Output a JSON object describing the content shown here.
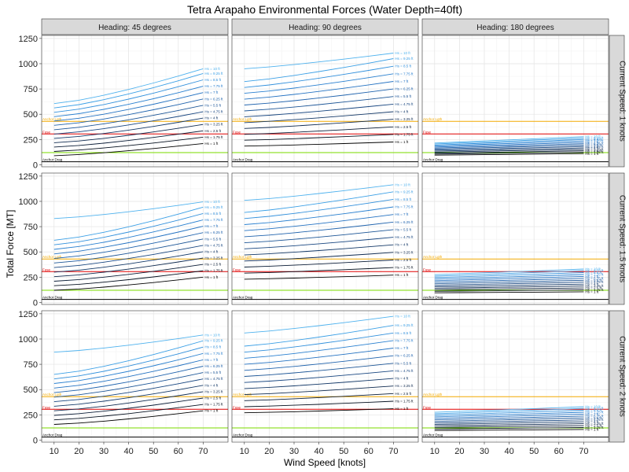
{
  "chart_data": {
    "type": "line",
    "title": "Tetra Arapaho Environmental Forces (Water Depth=40ft)",
    "xlabel": "Wind Speed [knots]",
    "ylabel": "Total Force [MT]",
    "x_ticks": [
      10,
      20,
      30,
      40,
      50,
      60,
      70
    ],
    "y_ticks": [
      0,
      250,
      500,
      750,
      1000,
      1250
    ],
    "xlim": [
      5,
      80
    ],
    "ylim": [
      -20,
      1280
    ],
    "grid": true,
    "col_strips": [
      "Heading:  45  degrees",
      "Heading:  90  degrees",
      "Heading:  180  degrees"
    ],
    "row_strips": [
      "Current Speed:  1  knots",
      "Current Speed:  1.5  knots",
      "Current Speed:  2  knots"
    ],
    "x": [
      10,
      20,
      30,
      40,
      50,
      60,
      70
    ],
    "series_labels": [
      "Hs =  1  ft",
      "Hs =  1.75  ft",
      "Hs =  2.5  ft",
      "Hs =  3.25  ft",
      "Hs =  4  ft",
      "Hs =  4.75  ft",
      "Hs =  5.5  ft",
      "Hs =  6.25  ft",
      "Hs =  7  ft",
      "Hs =  7.75  ft",
      "Hs =  8.5  ft",
      "Hs =  9.25  ft",
      "Hs =  10  ft"
    ],
    "series_colors": [
      "#000000",
      "#05101f",
      "#0a1c36",
      "#0f2a4f",
      "#133867",
      "#184680",
      "#1c5596",
      "#2063ad",
      "#2472c2",
      "#2a80d0",
      "#3290dc",
      "#3ca0e6",
      "#4fb2ee"
    ],
    "panels": [
      {
        "row": 0,
        "col": 0,
        "start": [
          90,
          132,
          175,
          218,
          261,
          304,
          347,
          390,
          433,
          476,
          519,
          562,
          605
        ],
        "end": [
          210,
          273,
          336,
          399,
          462,
          525,
          588,
          651,
          714,
          777,
          840,
          903,
          950
        ],
        "curve": 1.3
      },
      {
        "row": 0,
        "col": 1,
        "start": [
          185,
          243,
          301,
          359,
          417,
          475,
          533,
          591,
          649,
          707,
          765,
          823,
          950
        ],
        "end": [
          225,
          300,
          375,
          450,
          525,
          600,
          675,
          750,
          825,
          900,
          975,
          1050,
          1105
        ],
        "curve": 1.2
      },
      {
        "row": 0,
        "col": 2,
        "start": [
          95,
          105,
          115,
          125,
          135,
          145,
          155,
          165,
          175,
          185,
          195,
          205,
          215
        ],
        "end": [
          110,
          124,
          138,
          152,
          166,
          180,
          194,
          208,
          222,
          236,
          250,
          264,
          278
        ],
        "curve": 1.0
      },
      {
        "row": 1,
        "col": 0,
        "start": [
          120,
          165,
          210,
          255,
          300,
          345,
          390,
          435,
          480,
          525,
          570,
          615,
          830
        ],
        "end": [
          250,
          313,
          376,
          439,
          502,
          565,
          628,
          691,
          754,
          817,
          880,
          943,
          995
        ],
        "curve": 1.3
      },
      {
        "row": 1,
        "col": 1,
        "start": [
          230,
          290,
          350,
          410,
          470,
          530,
          590,
          650,
          710,
          770,
          830,
          890,
          1010
        ],
        "end": [
          270,
          345,
          420,
          495,
          570,
          645,
          720,
          795,
          870,
          945,
          1020,
          1095,
          1165
        ],
        "curve": 1.2
      },
      {
        "row": 1,
        "col": 2,
        "start": [
          95,
          110,
          125,
          140,
          155,
          170,
          185,
          200,
          215,
          230,
          245,
          260,
          275
        ],
        "end": [
          105,
          124,
          143,
          162,
          181,
          200,
          219,
          238,
          257,
          276,
          295,
          314,
          330
        ],
        "curve": 1.0
      },
      {
        "row": 2,
        "col": 0,
        "start": [
          155,
          200,
          245,
          290,
          335,
          380,
          425,
          470,
          515,
          560,
          605,
          650,
          870
        ],
        "end": [
          290,
          353,
          416,
          479,
          542,
          605,
          668,
          731,
          794,
          857,
          920,
          983,
          1040
        ],
        "curve": 1.3
      },
      {
        "row": 2,
        "col": 1,
        "start": [
          270,
          330,
          390,
          450,
          510,
          570,
          630,
          690,
          750,
          810,
          870,
          930,
          1060
        ],
        "end": [
          310,
          385,
          460,
          535,
          610,
          685,
          760,
          835,
          910,
          985,
          1060,
          1135,
          1225
        ],
        "curve": 1.2
      },
      {
        "row": 2,
        "col": 2,
        "start": [
          95,
          110,
          125,
          140,
          155,
          170,
          185,
          200,
          215,
          230,
          245,
          260,
          275
        ],
        "end": [
          105,
          124,
          143,
          162,
          181,
          200,
          219,
          238,
          257,
          276,
          295,
          314,
          330
        ],
        "curve": 1.0
      }
    ],
    "reference_lines": [
      {
        "label": "Anchor Drag",
        "value": 30,
        "color": "#000000"
      },
      {
        "label": "",
        "value": 120,
        "color": "#7fe000"
      },
      {
        "label": "Fuse",
        "value": 305,
        "color": "#e00000"
      },
      {
        "label": "Anchor Lgth",
        "value": 430,
        "color": "#f2a900"
      }
    ]
  }
}
